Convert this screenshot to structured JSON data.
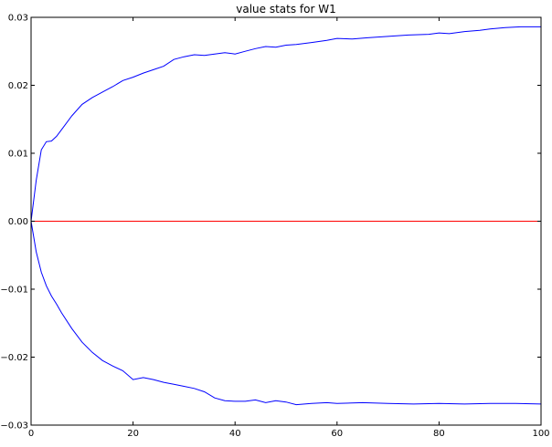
{
  "chart_data": {
    "type": "line",
    "title": "value stats for W1",
    "xlabel": "",
    "ylabel": "",
    "xlim": [
      0,
      100
    ],
    "ylim": [
      -0.03,
      0.03
    ],
    "xticks": [
      0,
      20,
      40,
      60,
      80,
      100
    ],
    "xtick_labels": [
      "0",
      "20",
      "40",
      "60",
      "80",
      "100"
    ],
    "yticks": [
      -0.03,
      -0.02,
      -0.01,
      0.0,
      0.01,
      0.02,
      0.03
    ],
    "ytick_labels": [
      "−0.03",
      "−0.02",
      "−0.01",
      "0.00",
      "0.01",
      "0.02",
      "0.03"
    ],
    "grid": false,
    "series": [
      {
        "color": "#0000ff",
        "x": [
          0,
          1,
          2,
          3,
          4,
          5,
          6,
          8,
          10,
          12,
          14,
          16,
          18,
          20,
          22,
          24,
          26,
          28,
          30,
          32,
          34,
          36,
          38,
          40,
          42,
          44,
          46,
          48,
          50,
          52,
          55,
          58,
          60,
          63,
          66,
          70,
          74,
          78,
          80,
          82,
          85,
          88,
          90,
          93,
          96,
          100
        ],
        "y": [
          0.0,
          0.006,
          0.0105,
          0.0117,
          0.0118,
          0.0125,
          0.0135,
          0.0155,
          0.0172,
          0.0182,
          0.019,
          0.0198,
          0.0207,
          0.0212,
          0.0218,
          0.0223,
          0.0228,
          0.0238,
          0.0242,
          0.0245,
          0.0244,
          0.0246,
          0.0248,
          0.0246,
          0.025,
          0.0254,
          0.0257,
          0.0256,
          0.0259,
          0.026,
          0.0263,
          0.0266,
          0.0269,
          0.0268,
          0.027,
          0.0272,
          0.0274,
          0.0275,
          0.0277,
          0.0276,
          0.0279,
          0.0281,
          0.0283,
          0.0285,
          0.0286,
          0.0286
        ]
      },
      {
        "color": "#ff0000",
        "x": [
          0,
          100
        ],
        "y": [
          0.0,
          0.0
        ]
      },
      {
        "color": "#0000ff",
        "x": [
          0,
          1,
          2,
          3,
          4,
          5,
          6,
          8,
          10,
          12,
          14,
          16,
          18,
          20,
          22,
          24,
          26,
          28,
          30,
          32,
          34,
          36,
          38,
          40,
          42,
          44,
          46,
          48,
          50,
          52,
          55,
          58,
          60,
          65,
          70,
          75,
          80,
          85,
          90,
          95,
          100
        ],
        "y": [
          0.0,
          -0.0045,
          -0.0075,
          -0.0095,
          -0.011,
          -0.0122,
          -0.0135,
          -0.0158,
          -0.0178,
          -0.0193,
          -0.0205,
          -0.0213,
          -0.022,
          -0.0233,
          -0.023,
          -0.0233,
          -0.0237,
          -0.024,
          -0.0243,
          -0.0246,
          -0.0251,
          -0.026,
          -0.0264,
          -0.0265,
          -0.0265,
          -0.0263,
          -0.0267,
          -0.0264,
          -0.0266,
          -0.027,
          -0.0268,
          -0.0267,
          -0.0268,
          -0.0267,
          -0.0268,
          -0.0269,
          -0.0268,
          -0.0269,
          -0.0268,
          -0.0268,
          -0.0269
        ]
      }
    ]
  }
}
